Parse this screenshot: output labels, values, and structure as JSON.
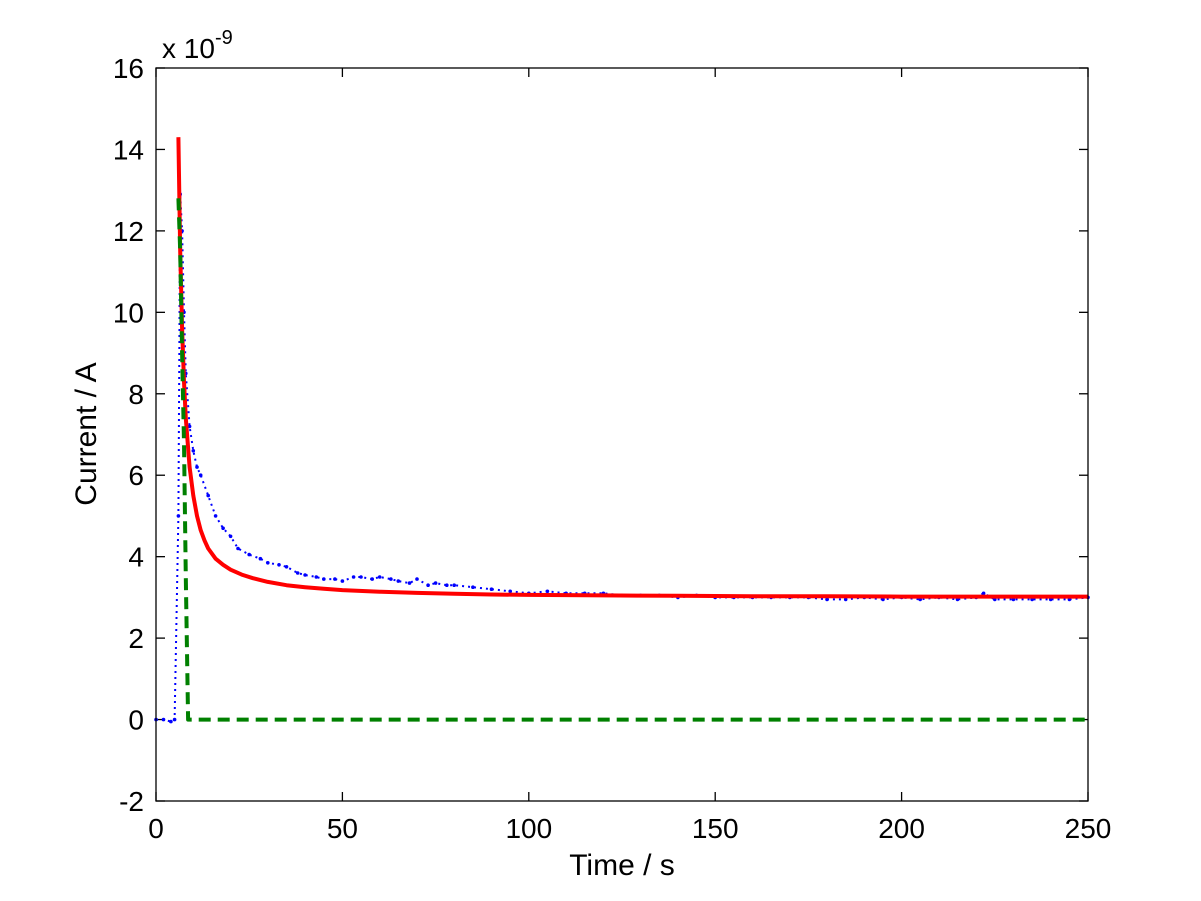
{
  "chart_data": {
    "type": "line",
    "title": "",
    "xlabel": "Time / s",
    "ylabel": "Current / A",
    "y_multiplier": {
      "base": "x 10",
      "exponent": "-9"
    },
    "xlim": [
      0,
      250
    ],
    "ylim": [
      -2,
      16
    ],
    "x_ticks": [
      0,
      50,
      100,
      150,
      200,
      250
    ],
    "y_ticks": [
      -2,
      0,
      2,
      4,
      6,
      8,
      10,
      12,
      14,
      16
    ],
    "x_tick_labels": [
      "0",
      "50",
      "100",
      "150",
      "200",
      "250"
    ],
    "y_tick_labels": [
      "-2",
      "0",
      "2",
      "4",
      "6",
      "8",
      "10",
      "12",
      "14",
      "16"
    ],
    "grid": false,
    "legend": "none",
    "series": [
      {
        "style": "blue dotted with point markers",
        "color": "#0000ff",
        "x": [
          0,
          2,
          4,
          5,
          6,
          6.5,
          7,
          7.5,
          8,
          9,
          10,
          11,
          12,
          14,
          16,
          18,
          20,
          22,
          25,
          28,
          30,
          33,
          35,
          38,
          40,
          43,
          45,
          48,
          50,
          53,
          55,
          58,
          60,
          63,
          65,
          68,
          70,
          73,
          75,
          78,
          80,
          85,
          90,
          95,
          100,
          105,
          110,
          115,
          120,
          125,
          130,
          135,
          140,
          145,
          150,
          155,
          160,
          165,
          170,
          175,
          180,
          185,
          190,
          195,
          200,
          205,
          210,
          215,
          220,
          222,
          225,
          230,
          235,
          240,
          245,
          250
        ],
        "y": [
          0.0,
          0.0,
          -0.05,
          0.0,
          5.0,
          12.9,
          12.0,
          10.0,
          8.5,
          7.2,
          6.6,
          6.2,
          6.0,
          5.5,
          5.0,
          4.7,
          4.5,
          4.2,
          4.05,
          3.95,
          3.85,
          3.8,
          3.75,
          3.6,
          3.55,
          3.5,
          3.45,
          3.45,
          3.4,
          3.5,
          3.5,
          3.45,
          3.5,
          3.45,
          3.4,
          3.35,
          3.45,
          3.3,
          3.35,
          3.3,
          3.3,
          3.25,
          3.2,
          3.15,
          3.1,
          3.15,
          3.1,
          3.1,
          3.1,
          3.05,
          3.05,
          3.05,
          3.0,
          3.05,
          3.0,
          3.0,
          3.0,
          3.0,
          3.0,
          3.0,
          2.95,
          2.95,
          3.0,
          2.95,
          3.0,
          2.95,
          3.0,
          2.95,
          3.0,
          3.1,
          2.95,
          2.95,
          2.95,
          2.95,
          2.95,
          3.0
        ]
      },
      {
        "style": "red solid thick",
        "color": "#ff0000",
        "x": [
          6,
          6.5,
          7,
          7.5,
          8,
          9,
          10,
          11,
          12,
          13,
          14,
          16,
          18,
          20,
          23,
          26,
          30,
          35,
          40,
          45,
          50,
          60,
          70,
          80,
          90,
          100,
          120,
          140,
          160,
          180,
          200,
          220,
          250
        ],
        "y": [
          14.3,
          11.5,
          9.6,
          8.3,
          7.4,
          6.2,
          5.5,
          5.0,
          4.65,
          4.4,
          4.2,
          3.95,
          3.8,
          3.68,
          3.56,
          3.47,
          3.38,
          3.3,
          3.25,
          3.21,
          3.18,
          3.14,
          3.11,
          3.09,
          3.07,
          3.06,
          3.05,
          3.04,
          3.03,
          3.03,
          3.02,
          3.02,
          3.02
        ]
      },
      {
        "style": "green dashed thick",
        "color": "#008000",
        "x": [
          6,
          6.5,
          7,
          7.5,
          8,
          8.6,
          9,
          250
        ],
        "y": [
          12.8,
          11.5,
          9.0,
          6.8,
          3.5,
          0.0,
          0.0,
          0.0
        ]
      }
    ]
  }
}
